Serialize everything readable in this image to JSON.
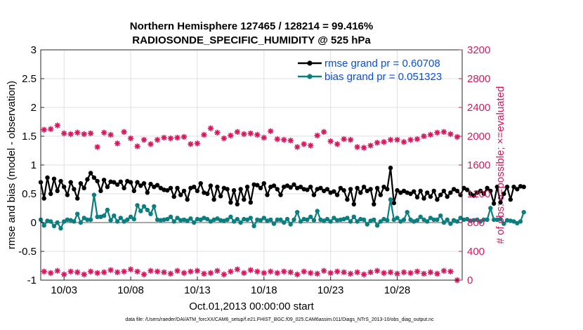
{
  "chart_data": {
    "type": "line",
    "title_line1": "Northern Hemisphere 127465 / 128214 = 99.416%",
    "title_line2": "RADIOSONDE_SPECIFIC_HUMIDITY @ 525 hPa",
    "xlabel": "Oct.01,2013 00:00:00 start",
    "ylabel_left": "rmse and bias (model - observation)",
    "ylabel_right": "# of obs: o=possible; ×=evaluated",
    "footer": "data file: /Users/raeder/DAI/ATM_forcXX/CAM6_setup/f.e21.FHIST_BGC.f09_025.CAM6assim.011/Diags_NTrS_2013-10/obs_diag_output.nc",
    "x_range": [
      1.25,
      32.875
    ],
    "ylim_left": [
      -1,
      3
    ],
    "ylim_right": [
      0,
      3200
    ],
    "x_ticks": [
      3,
      8,
      13,
      18,
      23,
      28
    ],
    "x_tick_labels": [
      "10/03",
      "10/08",
      "10/13",
      "10/18",
      "10/23",
      "10/28"
    ],
    "y_left_ticks": [
      -1,
      -0.5,
      0,
      0.5,
      1,
      1.5,
      2,
      2.5,
      3
    ],
    "y_left_tick_labels": [
      "-1",
      "-0.5",
      "0",
      "0.5",
      "1",
      "1.5",
      "2",
      "2.5",
      "3"
    ],
    "y_right_ticks": [
      0,
      400,
      800,
      1200,
      1600,
      2000,
      2400,
      2800,
      3200
    ],
    "y_right_tick_labels": [
      "0",
      "400",
      "800",
      "1200",
      "1600",
      "2000",
      "2400",
      "2800",
      "3200"
    ],
    "x_start": 1.25,
    "x_step": 0.25,
    "series": [
      {
        "name": "rmse grand pr = 0.60708",
        "color": "#000000",
        "values": [
          0.7,
          0.42,
          0.78,
          0.5,
          0.76,
          0.55,
          0.72,
          0.62,
          0.48,
          0.7,
          0.58,
          0.42,
          0.68,
          0.6,
          0.75,
          0.86,
          0.78,
          0.72,
          0.55,
          0.74,
          0.62,
          0.71,
          0.7,
          0.66,
          0.71,
          0.6,
          0.72,
          0.7,
          0.55,
          0.7,
          0.64,
          0.68,
          0.52,
          0.67,
          0.62,
          0.65,
          0.6,
          0.57,
          0.56,
          0.6,
          0.45,
          0.6,
          0.48,
          0.55,
          0.4,
          0.6,
          0.62,
          0.55,
          0.68,
          0.52,
          0.5,
          0.64,
          0.4,
          0.62,
          0.46,
          0.6,
          0.58,
          0.35,
          0.56,
          0.32,
          0.58,
          0.4,
          0.62,
          0.35,
          0.66,
          0.65,
          0.6,
          0.68,
          0.48,
          0.62,
          0.64,
          0.58,
          0.48,
          0.62,
          0.64,
          0.61,
          0.66,
          0.6,
          0.62,
          0.58,
          0.57,
          0.62,
          0.48,
          0.58,
          0.6,
          0.55,
          0.58,
          0.52,
          0.54,
          0.48,
          0.6,
          0.56,
          0.4,
          0.58,
          0.32,
          0.6,
          0.52,
          0.62,
          0.55,
          0.58,
          0.32,
          0.6,
          0.48,
          0.62,
          0.58,
          0.95,
          0.34,
          0.56,
          0.52,
          0.55,
          0.52,
          0.5,
          0.54,
          0.44,
          0.55,
          0.42,
          0.52,
          0.45,
          0.55,
          0.4,
          0.48,
          0.55,
          0.45,
          0.52,
          0.58,
          0.55,
          0.48,
          0.6,
          0.57,
          0.5,
          0.47,
          0.52,
          0.55,
          0.5,
          0.6,
          0.55,
          0.33,
          0.62,
          0.35,
          0.5,
          0.62,
          0.4,
          0.62,
          0.58,
          0.63,
          0.62
        ]
      },
      {
        "name": "bias grand pr = 0.051323",
        "color": "#0b7f7f",
        "values": [
          0.05,
          -0.05,
          0.03,
          0.02,
          -0.06,
          0.0,
          -0.1,
          0.02,
          0.05,
          0.04,
          0.02,
          0.15,
          0.0,
          0.08,
          0.05,
          0.05,
          0.48,
          0.1,
          0.1,
          0.12,
          0.22,
          0.04,
          0.12,
          0.02,
          0.08,
          0.02,
          0.05,
          0.1,
          0.06,
          0.3,
          0.2,
          0.28,
          0.22,
          0.15,
          0.28,
          0.05,
          0.04,
          0.05,
          0.06,
          0.1,
          0.02,
          0.08,
          0.04,
          0.05,
          0.03,
          0.07,
          0.0,
          0.06,
          0.05,
          0.08,
          0.06,
          0.02,
          0.05,
          0.07,
          0.04,
          0.03,
          0.05,
          0.1,
          0.02,
          0.06,
          0.0,
          0.06,
          0.05,
          0.08,
          -0.06,
          0.05,
          0.04,
          0.08,
          0.03,
          0.05,
          -0.02,
          0.05,
          0.05,
          0.0,
          0.06,
          -0.03,
          0.05,
          0.18,
          0.02,
          0.06,
          0.05,
          0.1,
          0.04,
          0.2,
          0.05,
          0.03,
          0.06,
          0.02,
          0.08,
          0.04,
          0.05,
          0.06,
          0.08,
          0.02,
          0.1,
          0.02,
          0.06,
          0.05,
          -0.03,
          0.03,
          0.05,
          -0.05,
          0.02,
          0.06,
          0.04,
          0.4,
          0.05,
          0.08,
          0.02,
          0.05,
          0.18,
          0.05,
          0.02,
          0.04,
          0.1,
          0.05,
          0.02,
          0.08,
          0.05,
          0.05,
          0.12,
          0.0,
          0.05,
          -0.02,
          0.04,
          0.02,
          0.08,
          0.05,
          0.06,
          0.03,
          0.04,
          0.05,
          0.02,
          0.05,
          0.05,
          0.25,
          0.05,
          0.05,
          0.06,
          -0.02,
          0.04,
          0.03,
          0.02,
          -0.01,
          0.02,
          0.18
        ]
      }
    ],
    "obs_possible": {
      "name": "possible",
      "color": "#d6185f",
      "x": [
        1.5,
        2.0,
        2.5,
        3.0,
        3.5,
        4.0,
        4.5,
        5.0,
        5.5,
        6.0,
        6.5,
        7.0,
        7.5,
        8.0,
        8.5,
        9.0,
        9.5,
        10.0,
        10.5,
        11.0,
        11.5,
        12.0,
        12.5,
        13.0,
        13.5,
        14.0,
        14.5,
        15.0,
        15.5,
        16.0,
        16.5,
        17.0,
        17.5,
        18.0,
        18.5,
        19.0,
        19.5,
        20.0,
        20.5,
        21.0,
        21.5,
        22.0,
        22.5,
        23.0,
        23.5,
        24.0,
        24.5,
        25.0,
        25.5,
        26.0,
        26.5,
        27.0,
        27.5,
        28.0,
        28.5,
        29.0,
        29.5,
        30.0,
        30.5,
        31.0,
        31.5,
        32.0,
        32.5
      ],
      "values": [
        2090,
        2100,
        2150,
        2040,
        2030,
        2050,
        2030,
        2040,
        1850,
        2050,
        2020,
        1900,
        2060,
        1970,
        1860,
        1950,
        1890,
        1950,
        1980,
        1970,
        1980,
        1990,
        1890,
        1900,
        2020,
        2110,
        2050,
        1970,
        2010,
        2060,
        2030,
        2040,
        2020,
        1980,
        2070,
        1960,
        1950,
        1940,
        1850,
        1890,
        1870,
        2010,
        2060,
        1930,
        1890,
        1960,
        1950,
        1850,
        1840,
        1870,
        1910,
        1920,
        1950,
        1950,
        1920,
        1950,
        1960,
        2000,
        2020,
        2050,
        2060,
        2030,
        1990
      ]
    },
    "obs_evaluated": {
      "name": "evaluated",
      "color": "#d6185f",
      "x": [
        1.5,
        2.0,
        2.5,
        3.0,
        3.5,
        4.0,
        4.5,
        5.0,
        5.5,
        6.0,
        6.5,
        7.0,
        7.5,
        8.0,
        8.5,
        9.0,
        9.5,
        10.0,
        10.5,
        11.0,
        11.5,
        12.0,
        12.5,
        13.0,
        13.5,
        14.0,
        14.5,
        15.0,
        15.5,
        16.0,
        16.5,
        17.0,
        17.5,
        18.0,
        18.5,
        19.0,
        19.5,
        20.0,
        20.5,
        21.0,
        21.5,
        22.0,
        22.5,
        23.0,
        23.5,
        24.0,
        24.5,
        25.0,
        25.5,
        26.0,
        26.5,
        27.0,
        27.5,
        28.0,
        28.5,
        29.0,
        29.5,
        30.0,
        30.5,
        31.0,
        31.5,
        32.0,
        32.5
      ],
      "values": [
        120,
        100,
        130,
        80,
        120,
        110,
        80,
        120,
        100,
        110,
        140,
        110,
        120,
        150,
        120,
        80,
        130,
        120,
        110,
        90,
        130,
        100,
        120,
        130,
        90,
        100,
        130,
        80,
        120,
        150,
        100,
        140,
        120,
        100,
        120,
        100,
        120,
        110,
        80,
        120,
        100,
        90,
        130,
        100,
        120,
        110,
        90,
        110,
        80,
        110,
        130,
        100,
        110,
        90,
        110,
        100,
        120,
        90,
        110,
        90,
        130,
        120,
        0
      ]
    }
  }
}
